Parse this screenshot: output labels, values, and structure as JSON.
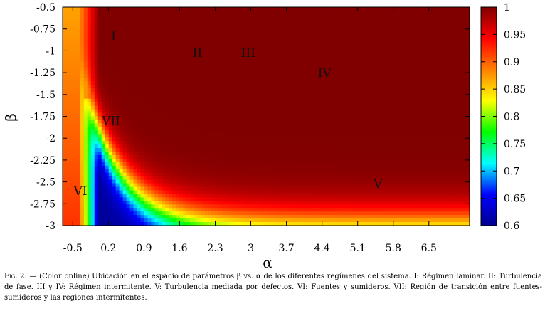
{
  "chart_data": {
    "type": "heatmap",
    "title": "",
    "xlabel": "α",
    "ylabel": "β",
    "xlim": [
      -0.7,
      7.3
    ],
    "ylim": [
      -3.0,
      -0.5
    ],
    "x_ticks": [
      "-0.5",
      "0.2",
      "0.9",
      "1.6",
      "2.3",
      "3",
      "3.7",
      "4.4",
      "5.1",
      "5.8",
      "6.5"
    ],
    "x_tick_values": [
      -0.5,
      0.2,
      0.9,
      1.6,
      2.3,
      3.0,
      3.7,
      4.4,
      5.1,
      5.8,
      6.5
    ],
    "y_ticks": [
      "-0.5",
      "-0.75",
      "-1",
      "-1.25",
      "-1.5",
      "-1.75",
      "-2",
      "-2.25",
      "-2.5",
      "-2.75",
      "-3"
    ],
    "y_tick_values": [
      -0.5,
      -0.75,
      -1.0,
      -1.25,
      -1.5,
      -1.75,
      -2.0,
      -2.25,
      -2.5,
      -2.75,
      -3.0
    ],
    "colorbar": {
      "range": [
        0.6,
        1.0
      ],
      "ticks": [
        "0.6",
        "0.65",
        "0.7",
        "0.75",
        "0.8",
        "0.85",
        "0.9",
        "0.95",
        "1"
      ],
      "tick_values": [
        0.6,
        0.65,
        0.7,
        0.75,
        0.8,
        0.85,
        0.9,
        0.95,
        1.0
      ],
      "colormap": [
        "#00008f",
        "#0000ff",
        "#00ffff",
        "#00ff00",
        "#ffff00",
        "#ff7f00",
        "#ff0000",
        "#800000"
      ]
    },
    "regions": [
      {
        "label": "I",
        "alpha": 0.3,
        "beta": -0.82
      },
      {
        "label": "II",
        "alpha": 1.95,
        "beta": -1.02
      },
      {
        "label": "III",
        "alpha": 2.95,
        "beta": -1.02
      },
      {
        "label": "IV",
        "alpha": 4.45,
        "beta": -1.25
      },
      {
        "label": "V",
        "alpha": 5.5,
        "beta": -2.52
      },
      {
        "label": "VI",
        "alpha": -0.35,
        "beta": -2.6
      },
      {
        "label": "VII",
        "alpha": 0.25,
        "beta": -1.8
      }
    ]
  },
  "caption": {
    "fig_label": "Fig. 2.",
    "text": "— (Color online) Ubicación en el espacio de parámetros β vs. α de los diferentes regímenes del sistema. I: Régimen laminar. II: Turbulencia de fase. III y IV: Régimen intermitente. V: Turbulencia mediada por defectos. VI: Fuentes y sumideros. VII: Región de transición entre fuentes-sumideros y las regiones intermitentes."
  }
}
